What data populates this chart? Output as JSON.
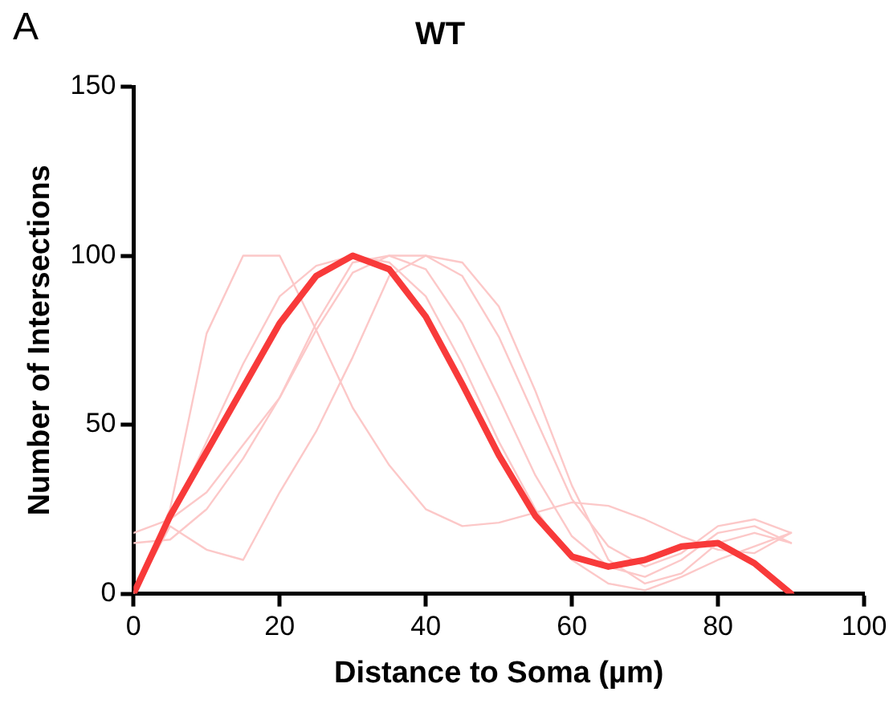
{
  "chart_data": {
    "type": "line",
    "title": "WT",
    "xlabel": "Distance to Soma (µm)",
    "ylabel": "Number of Intersections",
    "annotations": [
      "A"
    ],
    "x": [
      0,
      5,
      10,
      15,
      20,
      25,
      30,
      35,
      40,
      45,
      50,
      55,
      60,
      65,
      70,
      75,
      80,
      85,
      90
    ],
    "series": [
      {
        "color": "#fcc8c8",
        "values": [
          0,
          25,
          77,
          100,
          100,
          78,
          55,
          38,
          25,
          20,
          21,
          24,
          27,
          26,
          22,
          17,
          13,
          12,
          18
        ]
      },
      {
        "color": "#fcc8c8",
        "values": [
          0,
          22,
          45,
          68,
          88,
          97,
          100,
          98,
          88,
          68,
          45,
          25,
          10,
          3,
          1,
          5,
          10,
          14,
          18
        ]
      },
      {
        "color": "#fcc8c8",
        "values": [
          15,
          16,
          25,
          40,
          58,
          78,
          95,
          100,
          96,
          80,
          58,
          35,
          17,
          8,
          5,
          10,
          18,
          20,
          15
        ]
      },
      {
        "color": "#fcc8c8",
        "values": [
          18,
          22,
          30,
          44,
          58,
          80,
          98,
          100,
          100,
          94,
          76,
          52,
          28,
          14,
          8,
          12,
          20,
          22,
          18
        ]
      },
      {
        "color": "#fcc8c8",
        "values": [
          0,
          20,
          13,
          10,
          30,
          48,
          70,
          94,
          100,
          98,
          85,
          60,
          32,
          10,
          3,
          6,
          15,
          18,
          15
        ]
      },
      {
        "color": "#f83a3a",
        "values": [
          0,
          23,
          42,
          61,
          80,
          94,
          100,
          96,
          82,
          62,
          41,
          23,
          11,
          8,
          10,
          14,
          15,
          9,
          0
        ]
      }
    ],
    "xlim": [
      0,
      100
    ],
    "xticks": [
      0,
      20,
      40,
      60,
      80,
      100
    ],
    "ylim": [
      0,
      150
    ],
    "yticks": [
      0,
      50,
      100,
      150
    ],
    "grid": false,
    "legend": false,
    "marker": "none",
    "line_style": "solid"
  }
}
